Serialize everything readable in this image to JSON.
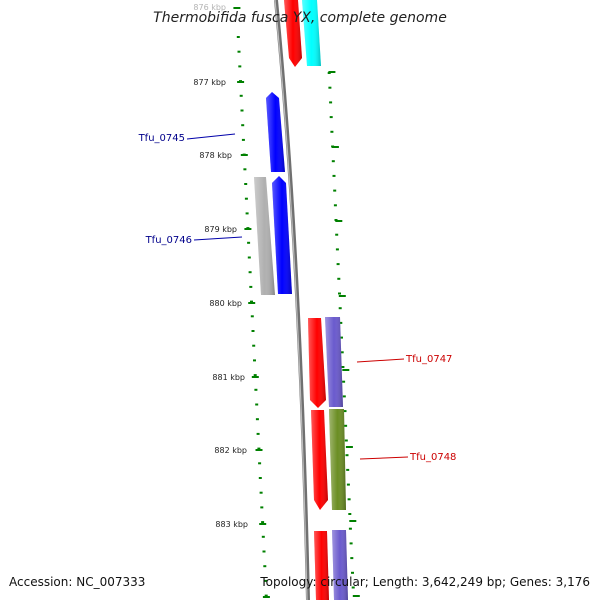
{
  "title": "Thermobifida fusca YX, complete genome",
  "footer": {
    "accession": "Accession: NC_007333",
    "topology": "Topology: circular; Length: 3,642,249 bp; Genes: 3,176"
  },
  "ticks": [
    "876 kbp",
    "877 kbp",
    "878 kbp",
    "879 kbp",
    "880 kbp",
    "881 kbp",
    "882 kbp",
    "883 kbp"
  ],
  "gene_labels": [
    {
      "name": "Tfu_0745",
      "strand": "minus",
      "color": "#00008b"
    },
    {
      "name": "Tfu_0746",
      "strand": "minus",
      "color": "#00008b"
    },
    {
      "name": "Tfu_0747",
      "strand": "plus",
      "color": "#cc0000"
    },
    {
      "name": "Tfu_0748",
      "strand": "plus",
      "color": "#cc0000"
    }
  ],
  "colors": {
    "backbone": "#808080",
    "tick": "#008000",
    "gene_red": "#ff0000",
    "gene_blue": "#0000ff",
    "gene_cyan": "#00ffff",
    "gene_gray": "#b0b0b0",
    "gene_purple": "#6a5acd",
    "gene_olive": "#6b8e23"
  }
}
